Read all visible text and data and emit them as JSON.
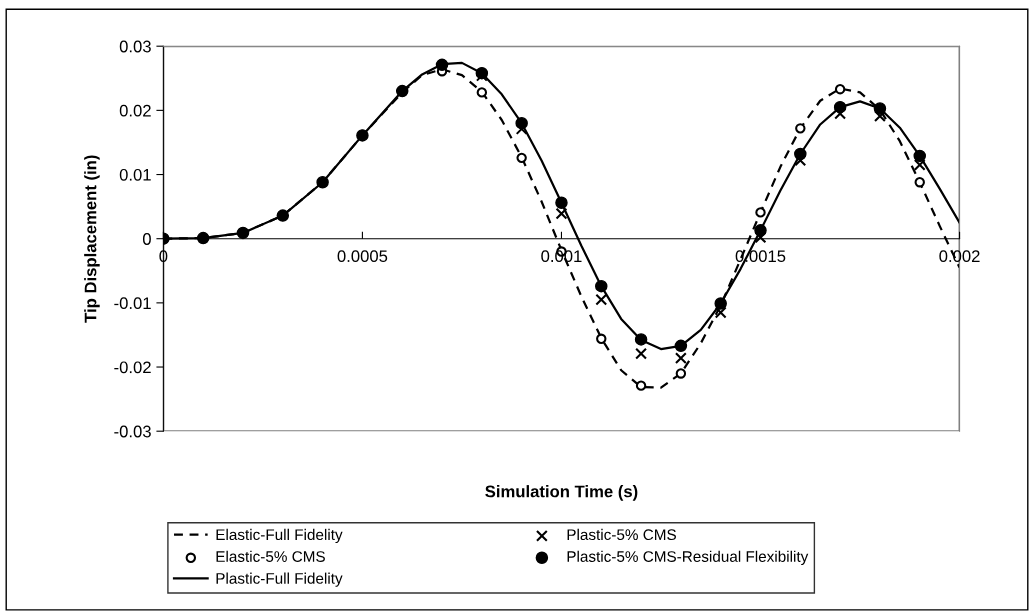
{
  "chart_data": {
    "type": "line",
    "xlabel": "Simulation Time (s)",
    "ylabel": "Tip Displacement (in)",
    "xlim": [
      0,
      0.002
    ],
    "xticks": [
      0,
      0.0005,
      0.001,
      0.0015,
      0.002
    ],
    "ylim": [
      -0.03,
      0.03
    ],
    "yticks": [
      -0.03,
      -0.02,
      -0.01,
      0,
      0.01,
      0.02,
      0.03
    ],
    "grid": false,
    "legend": "bottom",
    "series": [
      {
        "name": "Elastic-Full Fidelity",
        "color": "#000000",
        "line_style": "dashed",
        "marker": "none",
        "x": [
          0,
          0.0001,
          0.0002,
          0.0003,
          0.0004,
          0.0005,
          0.0006,
          0.00065,
          0.0007,
          0.00075,
          0.0008,
          0.00085,
          0.0009,
          0.00095,
          0.001,
          0.00105,
          0.0011,
          0.00115,
          0.0012,
          0.00125,
          0.0013,
          0.00135,
          0.0014,
          0.00145,
          0.0015,
          0.00155,
          0.0016,
          0.00165,
          0.0017,
          0.00175,
          0.0018,
          0.00185,
          0.0019,
          0.00195,
          0.002
        ],
        "values": [
          0,
          0.0001,
          0.0009,
          0.0036,
          0.0088,
          0.0161,
          0.0228,
          0.0255,
          0.0264,
          0.0255,
          0.0229,
          0.0185,
          0.0127,
          0.0058,
          -0.0018,
          -0.009,
          -0.0155,
          -0.0205,
          -0.0231,
          -0.0232,
          -0.021,
          -0.0163,
          -0.0104,
          -0.0032,
          0.0041,
          0.0112,
          0.0172,
          0.0215,
          0.0234,
          0.0228,
          0.0201,
          0.0152,
          0.0088,
          0.002,
          -0.0045
        ]
      },
      {
        "name": "Elastic-5% CMS",
        "type": "scatter",
        "color": "#000000",
        "marker": "circle",
        "x": [
          0.0007,
          0.0008,
          0.0009,
          0.001,
          0.0011,
          0.0012,
          0.0013,
          0.0014,
          0.0015,
          0.0016,
          0.0017,
          0.0018,
          0.0019
        ],
        "values": [
          0.0261,
          0.0228,
          0.0126,
          -0.002,
          -0.0156,
          -0.0229,
          -0.021,
          null,
          0.0041,
          0.0172,
          0.0233,
          null,
          0.0088
        ]
      },
      {
        "name": "Plastic-Full Fidelity",
        "color": "#000000",
        "line_style": "solid",
        "marker": "none",
        "x": [
          0,
          0.0001,
          0.0002,
          0.0003,
          0.0004,
          0.0005,
          0.0006,
          0.00065,
          0.0007,
          0.00075,
          0.0008,
          0.00085,
          0.0009,
          0.00095,
          0.001,
          0.00105,
          0.0011,
          0.00115,
          0.0012,
          0.00125,
          0.0013,
          0.00135,
          0.0014,
          0.00145,
          0.0015,
          0.00155,
          0.0016,
          0.00165,
          0.0017,
          0.00175,
          0.0018,
          0.00185,
          0.0019,
          0.00195,
          0.002
        ],
        "values": [
          0,
          0.0001,
          0.0009,
          0.0036,
          0.0088,
          0.0161,
          0.023,
          0.0256,
          0.0272,
          0.0274,
          0.0258,
          0.0225,
          0.018,
          0.0122,
          0.0056,
          -0.0011,
          -0.0074,
          -0.0125,
          -0.0158,
          -0.0172,
          -0.0167,
          -0.0142,
          -0.0101,
          -0.0047,
          0.0013,
          0.0075,
          0.0132,
          0.0178,
          0.0205,
          0.0214,
          0.0203,
          0.0173,
          0.0129,
          0.0078,
          0.0025
        ]
      },
      {
        "name": "Plastic-5% CMS",
        "type": "scatter",
        "color": "#000000",
        "marker": "cross",
        "x": [
          0.0008,
          0.0009,
          0.001,
          0.0011,
          0.0012,
          0.0013,
          0.0014,
          0.0015,
          0.0016,
          0.0017,
          0.0018,
          0.0019
        ],
        "values": [
          0.0254,
          0.0171,
          0.0039,
          -0.0095,
          -0.0179,
          -0.0186,
          -0.0115,
          0.0002,
          0.0122,
          0.0195,
          0.0191,
          0.0115
        ]
      },
      {
        "name": "Plastic-5% CMS-Residual Flexibility",
        "type": "scatter",
        "color": "#000000",
        "marker": "circle",
        "x": [
          0,
          0.0001,
          0.0002,
          0.0003,
          0.0004,
          0.0005,
          0.0006,
          0.0007,
          0.0008,
          0.0009,
          0.001,
          0.0011,
          0.0012,
          0.0013,
          0.0014,
          0.0015,
          0.0016,
          0.0017,
          0.0018,
          0.0019
        ],
        "values": [
          0,
          0.0001,
          0.0009,
          0.0036,
          0.0088,
          0.0161,
          0.023,
          0.0271,
          0.0258,
          0.018,
          0.0056,
          -0.0074,
          -0.0157,
          -0.0167,
          -0.0101,
          0.0013,
          0.0132,
          0.0205,
          0.0203,
          0.0129
        ]
      }
    ]
  }
}
